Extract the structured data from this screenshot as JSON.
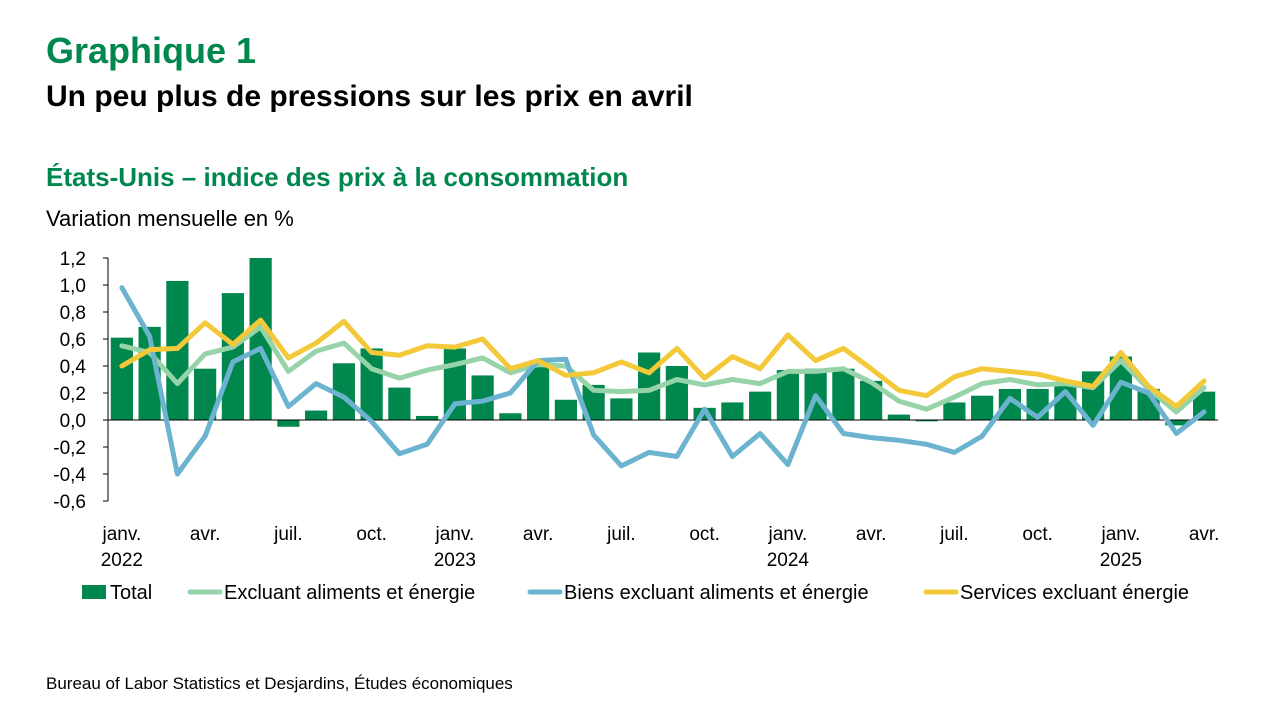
{
  "header": {
    "label": "Graphique 1",
    "title": "Un peu plus de pressions sur les prix en avril"
  },
  "subtitle": "États-Unis – indice des prix à la consommation",
  "unit_label": "Variation mensuelle en %",
  "source": "Bureau of Labor Statistics et Desjardins, Études économiques",
  "colors": {
    "bar": "#00874E",
    "core": "#97D3A9",
    "goods": "#6BB3CF",
    "services": "#F3C93A"
  },
  "chart_data": {
    "type": "bar",
    "title": "États-Unis – indice des prix à la consommation",
    "ylabel": "Variation mensuelle en %",
    "ylim": [
      -0.6,
      1.2
    ],
    "yticks": [
      "1,2",
      "1,0",
      "0,8",
      "0,6",
      "0,4",
      "0,2",
      "0,0",
      "-0,2",
      "-0,4",
      "-0,6"
    ],
    "ytick_values": [
      1.2,
      1.0,
      0.8,
      0.6,
      0.4,
      0.2,
      0.0,
      -0.2,
      -0.4,
      -0.6
    ],
    "x_ticks": [
      {
        "index": 0,
        "label": "janv.",
        "year": "2022"
      },
      {
        "index": 3,
        "label": "avr.",
        "year": ""
      },
      {
        "index": 6,
        "label": "juil.",
        "year": ""
      },
      {
        "index": 9,
        "label": "oct.",
        "year": ""
      },
      {
        "index": 12,
        "label": "janv.",
        "year": "2023"
      },
      {
        "index": 15,
        "label": "avr.",
        "year": ""
      },
      {
        "index": 18,
        "label": "juil.",
        "year": ""
      },
      {
        "index": 21,
        "label": "oct.",
        "year": ""
      },
      {
        "index": 24,
        "label": "janv.",
        "year": "2024"
      },
      {
        "index": 27,
        "label": "avr.",
        "year": ""
      },
      {
        "index": 30,
        "label": "juil.",
        "year": ""
      },
      {
        "index": 33,
        "label": "oct.",
        "year": ""
      },
      {
        "index": 36,
        "label": "janv.",
        "year": "2025"
      },
      {
        "index": 39,
        "label": "avr.",
        "year": ""
      }
    ],
    "grid": false,
    "legend_position": "bottom",
    "series": [
      {
        "name": "Total",
        "kind": "bar",
        "color": "#00874E",
        "values": [
          0.61,
          0.69,
          1.03,
          0.38,
          0.94,
          1.2,
          -0.05,
          0.07,
          0.42,
          0.53,
          0.24,
          0.03,
          0.53,
          0.33,
          0.05,
          0.43,
          0.15,
          0.26,
          0.16,
          0.5,
          0.4,
          0.09,
          0.13,
          0.21,
          0.37,
          0.38,
          0.38,
          0.29,
          0.04,
          -0.01,
          0.13,
          0.18,
          0.23,
          0.23,
          0.27,
          0.36,
          0.47,
          0.23,
          -0.04,
          0.21
        ]
      },
      {
        "name": "Excluant aliments et énergie",
        "kind": "line",
        "color": "#97D3A9",
        "values": [
          0.55,
          0.5,
          0.27,
          0.49,
          0.54,
          0.69,
          0.36,
          0.51,
          0.57,
          0.38,
          0.31,
          0.37,
          0.41,
          0.46,
          0.35,
          0.41,
          0.4,
          0.22,
          0.21,
          0.22,
          0.3,
          0.26,
          0.3,
          0.27,
          0.36,
          0.36,
          0.38,
          0.28,
          0.14,
          0.08,
          0.17,
          0.27,
          0.3,
          0.26,
          0.27,
          0.24,
          0.44,
          0.23,
          0.06,
          0.24
        ]
      },
      {
        "name": "Biens excluant aliments et énergie",
        "kind": "line",
        "color": "#6BB3CF",
        "values": [
          0.98,
          0.62,
          -0.4,
          -0.12,
          0.43,
          0.53,
          0.1,
          0.27,
          0.17,
          -0.01,
          -0.25,
          -0.18,
          0.12,
          0.14,
          0.2,
          0.44,
          0.45,
          -0.11,
          -0.34,
          -0.24,
          -0.27,
          0.08,
          -0.27,
          -0.1,
          -0.33,
          0.18,
          -0.1,
          -0.13,
          -0.15,
          -0.18,
          -0.24,
          -0.12,
          0.16,
          0.02,
          0.21,
          -0.04,
          0.28,
          0.2,
          -0.1,
          0.06
        ]
      },
      {
        "name": "Services excluant énergie",
        "kind": "line",
        "color": "#F3C93A",
        "values": [
          0.4,
          0.52,
          0.53,
          0.72,
          0.56,
          0.74,
          0.46,
          0.57,
          0.73,
          0.5,
          0.48,
          0.55,
          0.54,
          0.6,
          0.38,
          0.44,
          0.33,
          0.35,
          0.43,
          0.35,
          0.53,
          0.31,
          0.47,
          0.38,
          0.63,
          0.44,
          0.53,
          0.38,
          0.22,
          0.18,
          0.32,
          0.38,
          0.36,
          0.34,
          0.29,
          0.25,
          0.5,
          0.25,
          0.1,
          0.29
        ]
      }
    ]
  }
}
